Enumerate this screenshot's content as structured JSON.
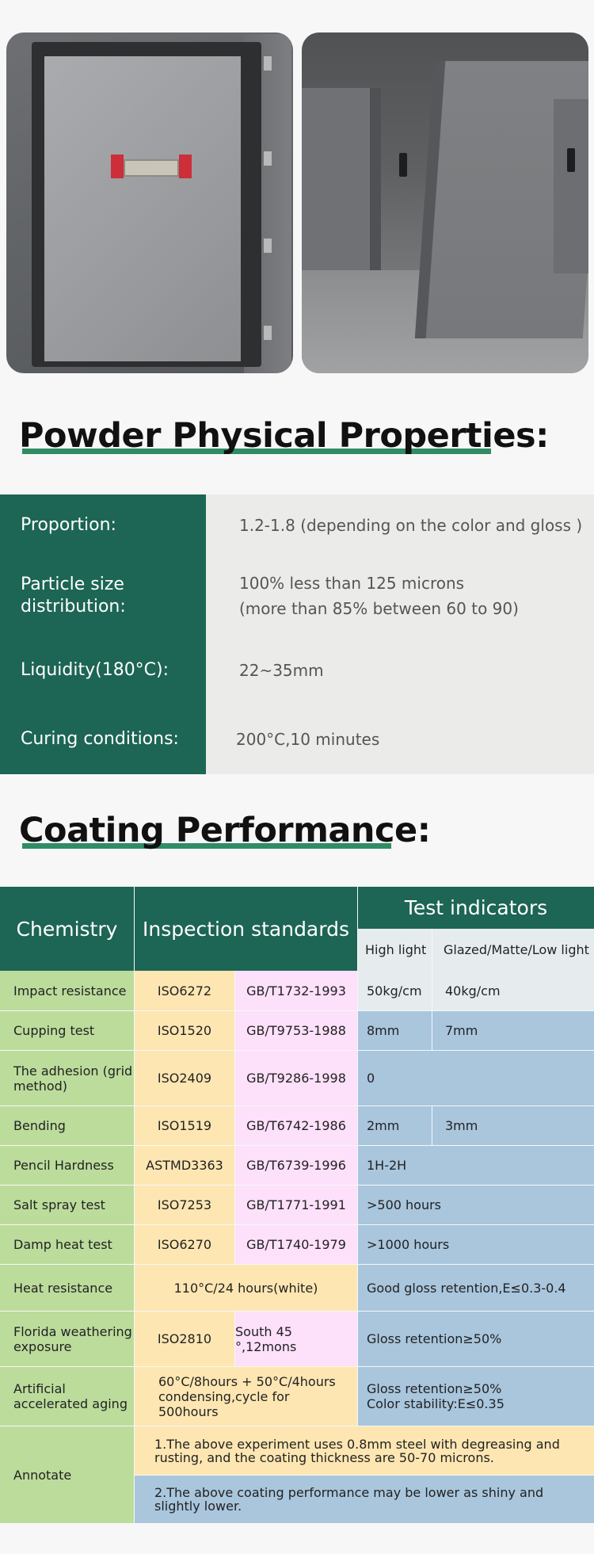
{
  "colors": {
    "primary": "#1d6555",
    "accent": "#2f8c65",
    "chemistry": "#bcdc9c",
    "iso": "#fde6b2",
    "gb": "#fde0fa",
    "indicator": "#a9c6dd"
  },
  "photos": {
    "left": "cabinet-open-door-photo",
    "right": "cabinets-on-floor-photo"
  },
  "powder": {
    "title": "Powder Physical Properties:",
    "rows": [
      {
        "label": "Proportion:",
        "value": "1.2-1.8 (depending on the color and gloss )",
        "value2": ""
      },
      {
        "label": "Particle size distribution:",
        "value": "100% less than 125 microns",
        "value2": "(more than 85% between 60 to 90)"
      },
      {
        "label": "Liquidity(180°C):",
        "value": "22~35mm",
        "value2": ""
      },
      {
        "label": "Curing conditions:",
        "value": "200°C,10 minutes",
        "value2": ""
      }
    ]
  },
  "coating": {
    "title": "Coating Performance:",
    "headers": {
      "chemistry": "Chemistry",
      "inspection": "Inspection standards",
      "test": "Test indicators",
      "high": "High light",
      "glazed": "Glazed/Matte/Low light"
    },
    "rows": [
      {
        "chem": "Impact resistance",
        "iso": "ISO6272",
        "gb": "GB/T1732-1993",
        "high": "50kg/cm",
        "glazed": "40kg/cm"
      },
      {
        "chem": "Cupping test",
        "iso": "ISO1520",
        "gb": "GB/T9753-1988",
        "high": "8mm",
        "glazed": "7mm"
      },
      {
        "chem": "The adhesion (grid method)",
        "iso": "ISO2409",
        "gb": "GB/T9286-1998",
        "ind": "0"
      },
      {
        "chem": "Bending",
        "iso": "ISO1519",
        "gb": "GB/T6742-1986",
        "high": "2mm",
        "glazed": "3mm"
      },
      {
        "chem": "Pencil Hardness",
        "iso": "ASTMD3363",
        "gb": "GB/T6739-1996",
        "ind": "1H-2H"
      },
      {
        "chem": "Salt spray test",
        "iso": "ISO7253",
        "gb": "GB/T1771-1991",
        "ind": ">500 hours"
      },
      {
        "chem": "Damp heat test",
        "iso": "ISO6270",
        "gb": "GB/T1740-1979",
        "ind": ">1000 hours"
      },
      {
        "chem": "Heat resistance",
        "std": "110°C/24 hours(white)",
        "ind": "Good gloss retention,E≤0.3-0.4"
      },
      {
        "chem": "Florida weathering exposure",
        "iso": "ISO2810",
        "gb": "South 45 °,12mons",
        "ind": "Gloss retention≥50%"
      },
      {
        "chem": "Artificial accelerated aging",
        "std": "60°C/8hours + 50°C/4hours condensing,cycle for 500hours",
        "ind": "Gloss retention≥50%",
        "ind2": "Color stability:E≤0.35"
      }
    ],
    "annotate": {
      "label": "Annotate",
      "note1": "1.The above experiment uses 0.8mm steel with degreasing and rusting, and the coating thickness are 50-70 microns.",
      "note2": "2.The above coating performance may be lower as shiny and slightly lower."
    }
  }
}
